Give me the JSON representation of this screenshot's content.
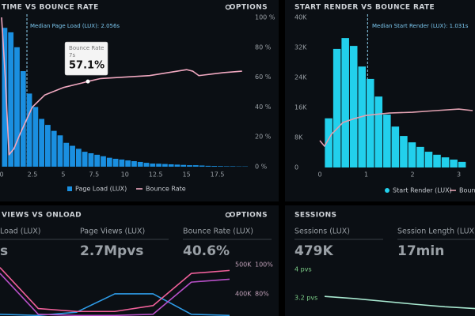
{
  "chart_data": [
    {
      "type": "histogram",
      "title": "TIME VS BOUNCE RATE",
      "options": "OPTIONS",
      "bins": [
        0,
        0.5,
        1,
        1.5,
        2,
        2.5,
        3,
        3.5,
        4,
        4.5,
        5,
        5.5,
        6,
        6.5,
        7,
        7.5,
        8,
        8.5,
        9,
        9.5,
        10,
        10.5,
        11,
        11.5,
        12,
        12.5,
        13,
        13.5,
        14,
        14.5,
        15,
        15.5,
        16,
        16.5,
        17,
        17.5,
        18,
        18.5,
        19,
        19.5,
        20
      ],
      "series": [
        {
          "name": "Page Load (LUX)",
          "type": "histogram",
          "color": "#1a8fe0",
          "values": [
            93,
            90,
            80,
            64,
            49,
            40,
            32,
            28,
            24,
            21,
            16,
            14,
            12,
            10,
            9,
            8,
            7,
            6,
            5.3,
            4.8,
            4.2,
            3.7,
            3.2,
            2.6,
            2.1,
            2,
            1.8,
            1.6,
            1.4,
            1.2,
            1,
            1,
            0.8,
            0.6,
            0.5,
            0.4,
            0.3,
            0.3,
            0.2,
            0.2
          ]
        },
        {
          "name": "Bounce Rate",
          "type": "line",
          "axis": "y2",
          "color": "#f0a8c0",
          "x": [
            0,
            0.3,
            0.6,
            1,
            1.5,
            2.5,
            3.5,
            5,
            6.5,
            7,
            8,
            10,
            12,
            13.5,
            15,
            15.5,
            16,
            17,
            18,
            19.5
          ],
          "values": [
            100,
            60,
            8,
            12,
            22,
            40,
            48,
            53,
            56,
            57.1,
            59,
            60,
            61,
            63,
            65,
            64,
            61,
            62,
            63,
            64
          ]
        }
      ],
      "xlim": [
        -0.2,
        19.8
      ],
      "xticks": [
        0,
        2.5,
        5,
        7.5,
        10,
        12.5,
        15,
        17.5
      ],
      "ylim": [
        0,
        100
      ],
      "y2lim": [
        0,
        100
      ],
      "y2ticks": [
        {
          "value": 0,
          "label": "0 %"
        },
        {
          "value": 20,
          "label": "20 %"
        },
        {
          "value": 40,
          "label": "40 %"
        },
        {
          "value": 60,
          "label": "60 %"
        },
        {
          "value": 80,
          "label": "80 %"
        },
        {
          "value": 100,
          "label": "100 %"
        }
      ],
      "median": {
        "value": 2.056,
        "label": "Median Page Load (LUX): 2.056s"
      },
      "tooltip": {
        "title": "Bounce Rate",
        "x": 7,
        "x_label": "7s",
        "value": 57.1,
        "value_label": "57.1%"
      }
    },
    {
      "type": "histogram",
      "title": "START RENDER VS BOUNCE RATE",
      "bins": [
        0.1,
        0.28,
        0.46,
        0.64,
        0.82,
        1,
        1.18,
        1.36,
        1.54,
        1.72,
        1.9,
        2.08,
        2.26,
        2.44,
        2.62,
        2.8,
        2.98,
        3.16
      ],
      "series": [
        {
          "name": "Start Render (LUX)",
          "type": "histogram",
          "color": "#22d0ec",
          "values": [
            13100,
            31600,
            34500,
            32400,
            26900,
            23600,
            18900,
            14100,
            10900,
            8400,
            6700,
            5500,
            4200,
            3400,
            2700,
            2100,
            1500
          ]
        },
        {
          "name": "Bounce Rate",
          "type": "line",
          "axis": "y2",
          "color": "#e0a0b0",
          "x": [
            0,
            0.1,
            0.25,
            0.5,
            0.75,
            1,
            1.5,
            2,
            2.5,
            3,
            3.3
          ],
          "values": [
            17.9,
            14.2,
            22.1,
            30,
            32.6,
            34.7,
            36.3,
            36.8,
            37.9,
            38.9,
            37.9
          ]
        }
      ],
      "xlim": [
        -0.1,
        3.35
      ],
      "xticks": [
        0,
        1,
        2,
        3
      ],
      "ylim": [
        0,
        40000
      ],
      "yticks": [
        0,
        {
          "value": 8000,
          "label": "8K"
        },
        {
          "value": 16000,
          "label": "16K"
        },
        {
          "value": 24000,
          "label": "24K"
        },
        {
          "value": 32000,
          "label": "32K"
        },
        {
          "value": 40000,
          "label": "40K"
        }
      ],
      "y2lim": [
        0,
        100
      ],
      "median": {
        "value": 1.031,
        "label": "Median Start Render (LUX): 1.031s"
      }
    },
    {
      "type": "line",
      "title": "VIEWS VS ONLOAD",
      "options": "OPTIONS",
      "kpis": [
        {
          "label": "Load (LUX)",
          "value": "s",
          "color": "#2e9be6"
        },
        {
          "label": "Page Views (LUX)",
          "value": "2.7Mpvs",
          "color": "#c060c8"
        },
        {
          "label": "Bounce Rate (LUX)",
          "value": "40.6%",
          "color": "#f06090"
        }
      ],
      "categories": [
        null,
        null,
        null,
        null,
        null,
        null,
        null
      ],
      "series": [
        {
          "color": "#2e9be6",
          "values": [
            330000,
            326000,
            337000,
            400000,
            400000,
            330000,
            326000
          ]
        },
        {
          "color": "#b850c8",
          "values": [
            470000,
            330000,
            326000,
            326000,
            330000,
            440000,
            450000
          ]
        },
        {
          "color": "#f0609a",
          "axis": "y2",
          "values": [
            98,
            70,
            68,
            68,
            72,
            94,
            96
          ]
        }
      ],
      "ylim": [
        324000,
        535000
      ],
      "yticks": [
        {
          "value": 400000,
          "label": "400K"
        },
        {
          "value": 500000,
          "label": "500K"
        }
      ],
      "y2lim": [
        64.9,
        107
      ],
      "y2ticks": [
        {
          "value": 80,
          "label": "80%"
        },
        {
          "value": 100,
          "label": "100%"
        }
      ]
    },
    {
      "type": "line",
      "title": "SESSIONS",
      "kpis": [
        {
          "label": "Sessions (LUX)",
          "value": "479K",
          "color": "#7ee08a"
        },
        {
          "label": "Session Length (LUX)",
          "value": "17min",
          "color": "#c8f07a"
        }
      ],
      "categories": [
        null,
        null,
        null,
        null,
        null,
        null
      ],
      "series": [
        {
          "color": "#a8e8d0",
          "values": [
            3.24,
            3.18,
            3.1,
            3.02,
            2.95,
            2.9
          ]
        }
      ],
      "ylim": [
        2.69,
        4.42
      ],
      "yticks": [
        {
          "value": 3.2,
          "label": "3.2 pvs"
        },
        {
          "value": 4,
          "label": "4 pvs"
        }
      ]
    }
  ]
}
